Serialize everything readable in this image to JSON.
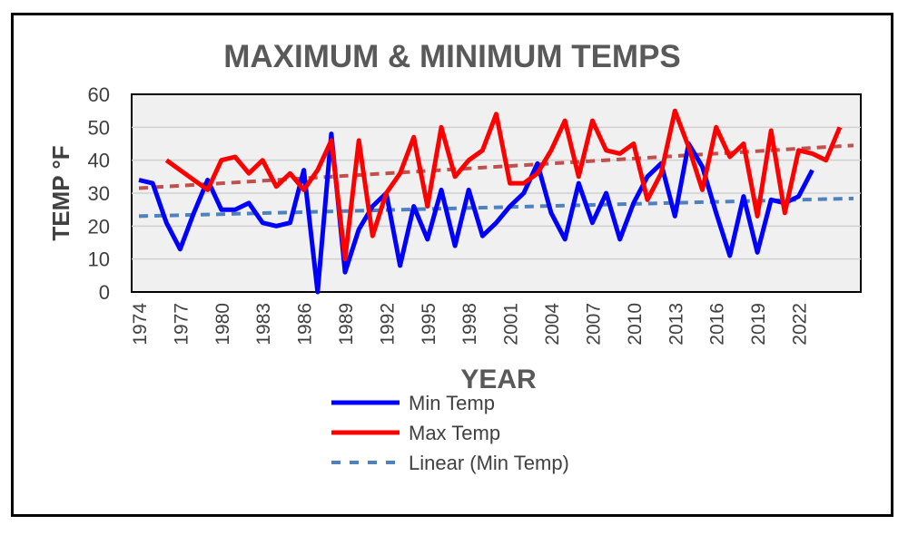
{
  "chart_data": {
    "type": "line",
    "title": "MAXIMUM & MINIMUM TEMPS",
    "xlabel": "YEAR",
    "ylabel": "TEMP °F",
    "ylim": [
      0,
      60
    ],
    "yticks": [
      0,
      10,
      20,
      30,
      40,
      50,
      60
    ],
    "x_range": [
      1974,
      2026
    ],
    "xticks": [
      1974,
      1977,
      1980,
      1983,
      1986,
      1989,
      1992,
      1995,
      1998,
      2001,
      2004,
      2007,
      2010,
      2013,
      2016,
      2019,
      2022
    ],
    "grid": true,
    "plot_background": "#f0f0f0",
    "legend_position": "bottom",
    "series": [
      {
        "name": "Min Temp",
        "color": "#0000ff",
        "style": "solid",
        "x": [
          1974,
          1975,
          1976,
          1977,
          1978,
          1979,
          1980,
          1981,
          1982,
          1983,
          1984,
          1985,
          1986,
          1987,
          1988,
          1989,
          1990,
          1991,
          1992,
          1993,
          1994,
          1995,
          1996,
          1997,
          1998,
          1999,
          2000,
          2001,
          2002,
          2003,
          2004,
          2005,
          2006,
          2007,
          2008,
          2009,
          2010,
          2011,
          2012,
          2013,
          2014,
          2015,
          2016,
          2017,
          2018,
          2019,
          2020,
          2021,
          2022,
          2023
        ],
        "values": [
          34,
          33,
          21,
          13,
          24,
          34,
          25,
          25,
          27,
          21,
          20,
          21,
          37,
          0,
          48,
          6,
          19,
          26,
          30,
          8,
          26,
          16,
          31,
          14,
          31,
          17,
          21,
          26,
          30,
          39,
          24,
          16,
          33,
          21,
          30,
          16,
          27,
          35,
          39,
          23,
          45,
          38,
          24,
          11,
          29,
          12,
          28,
          27,
          29,
          37
        ]
      },
      {
        "name": "Max Temp",
        "color": "#ff0000",
        "style": "solid",
        "x": [
          1976,
          1977,
          1978,
          1979,
          1980,
          1981,
          1982,
          1983,
          1984,
          1985,
          1986,
          1987,
          1988,
          1989,
          1990,
          1991,
          1992,
          1993,
          1994,
          1995,
          1996,
          1997,
          1998,
          1999,
          2000,
          2001,
          2002,
          2003,
          2004,
          2005,
          2006,
          2007,
          2008,
          2009,
          2010,
          2011,
          2012,
          2013,
          2014,
          2015,
          2016,
          2017,
          2018,
          2019,
          2020,
          2021,
          2022,
          2023,
          2024,
          2025
        ],
        "values": [
          40,
          37,
          34,
          31,
          40,
          41,
          36,
          40,
          32,
          36,
          31,
          37,
          46,
          10,
          46,
          17,
          30,
          36,
          47,
          26,
          50,
          35,
          40,
          43,
          54,
          33,
          33,
          36,
          43,
          52,
          35,
          52,
          43,
          42,
          45,
          28,
          36,
          55,
          44,
          31,
          50,
          41,
          45,
          23,
          49,
          24,
          43,
          42,
          40,
          50
        ]
      },
      {
        "name": "Linear (Min Temp)",
        "color": "#4f81bd",
        "style": "dashed",
        "trend": [
          [
            1974,
            23
          ],
          [
            2026,
            28.4
          ]
        ]
      },
      {
        "color": "#c0504d",
        "style": "dashed",
        "trend": [
          [
            1974,
            31.5
          ],
          [
            2026,
            44.5
          ]
        ]
      }
    ]
  }
}
